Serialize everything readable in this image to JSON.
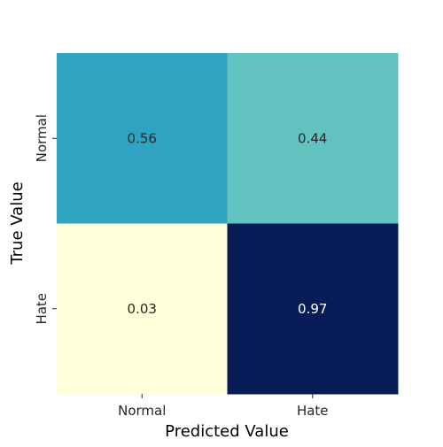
{
  "chart_data": {
    "type": "heatmap",
    "title": "",
    "xlabel": "Predicted Value",
    "ylabel": "True Value",
    "x_categories": [
      "Normal",
      "Hate"
    ],
    "y_categories": [
      "Normal",
      "Hate"
    ],
    "values": [
      [
        0.56,
        0.44
      ],
      [
        0.03,
        0.97
      ]
    ],
    "cell_labels": [
      [
        "0.56",
        "0.44"
      ],
      [
        "0.03",
        "0.97"
      ]
    ],
    "vmin": 0.03,
    "vmax": 0.97,
    "colormap": "YlGnBu",
    "colorbar": false,
    "grid": false
  }
}
